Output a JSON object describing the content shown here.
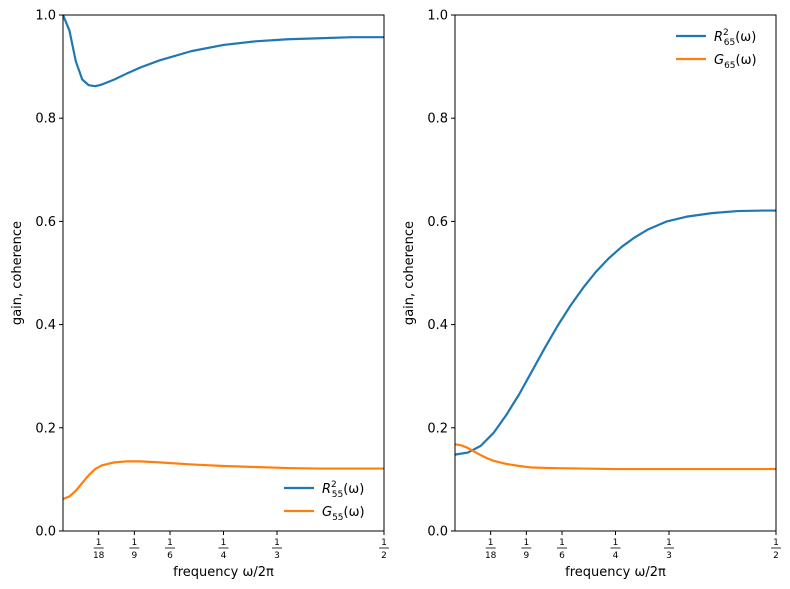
{
  "chart_data": [
    {
      "type": "line",
      "xlabel": "frequency ω/2π",
      "ylabel": "gain, coherence",
      "xlim": [
        0,
        0.5
      ],
      "ylim": [
        0,
        1.0
      ],
      "xticks": [
        {
          "value": 0.05556,
          "num": "1",
          "den": "18"
        },
        {
          "value": 0.11111,
          "num": "1",
          "den": "9"
        },
        {
          "value": 0.16667,
          "num": "1",
          "den": "6"
        },
        {
          "value": 0.25,
          "num": "1",
          "den": "4"
        },
        {
          "value": 0.33333,
          "num": "1",
          "den": "3"
        },
        {
          "value": 0.5,
          "num": "1",
          "den": "2"
        }
      ],
      "yticks": [
        "0.0",
        "0.2",
        "0.4",
        "0.6",
        "0.8",
        "1.0"
      ],
      "legend_position": "lower-right",
      "series": [
        {
          "name": "R",
          "sup": "2",
          "sub": "55",
          "arg": "(ω)",
          "color": "#1f77b4",
          "x": [
            0,
            0.01,
            0.02,
            0.03,
            0.04,
            0.05,
            0.06,
            0.08,
            0.1,
            0.12,
            0.15,
            0.2,
            0.25,
            0.3,
            0.35,
            0.4,
            0.45,
            0.5
          ],
          "y": [
            1.0,
            0.97,
            0.91,
            0.875,
            0.864,
            0.862,
            0.865,
            0.875,
            0.887,
            0.898,
            0.912,
            0.93,
            0.942,
            0.949,
            0.953,
            0.955,
            0.957,
            0.957
          ]
        },
        {
          "name": "G",
          "sub": "55",
          "arg": "(ω)",
          "color": "#ff7f0e",
          "x": [
            0,
            0.01,
            0.02,
            0.03,
            0.04,
            0.05,
            0.06,
            0.08,
            0.1,
            0.12,
            0.15,
            0.2,
            0.25,
            0.3,
            0.35,
            0.4,
            0.45,
            0.5
          ],
          "y": [
            0.062,
            0.067,
            0.078,
            0.093,
            0.108,
            0.12,
            0.127,
            0.133,
            0.135,
            0.135,
            0.133,
            0.129,
            0.126,
            0.124,
            0.122,
            0.121,
            0.121,
            0.121
          ]
        }
      ]
    },
    {
      "type": "line",
      "xlabel": "frequency ω/2π",
      "ylabel": "gain, coherence",
      "xlim": [
        0,
        0.5
      ],
      "ylim": [
        0,
        1.0
      ],
      "xticks": [
        {
          "value": 0.05556,
          "num": "1",
          "den": "18"
        },
        {
          "value": 0.11111,
          "num": "1",
          "den": "9"
        },
        {
          "value": 0.16667,
          "num": "1",
          "den": "6"
        },
        {
          "value": 0.25,
          "num": "1",
          "den": "4"
        },
        {
          "value": 0.33333,
          "num": "1",
          "den": "3"
        },
        {
          "value": 0.5,
          "num": "1",
          "den": "2"
        }
      ],
      "yticks": [
        "0.0",
        "0.2",
        "0.4",
        "0.6",
        "0.8",
        "1.0"
      ],
      "legend_position": "upper-right",
      "series": [
        {
          "name": "R",
          "sup": "2",
          "sub": "65",
          "arg": "(ω)",
          "color": "#1f77b4",
          "x": [
            0,
            0.02,
            0.04,
            0.06,
            0.08,
            0.1,
            0.12,
            0.14,
            0.16,
            0.18,
            0.2,
            0.22,
            0.24,
            0.26,
            0.28,
            0.3,
            0.33,
            0.36,
            0.4,
            0.44,
            0.48,
            0.5
          ],
          "y": [
            0.148,
            0.152,
            0.165,
            0.19,
            0.225,
            0.265,
            0.31,
            0.355,
            0.398,
            0.437,
            0.472,
            0.503,
            0.529,
            0.551,
            0.569,
            0.584,
            0.6,
            0.609,
            0.616,
            0.62,
            0.621,
            0.621
          ]
        },
        {
          "name": "G",
          "sub": "65",
          "arg": "(ω)",
          "color": "#ff7f0e",
          "x": [
            0,
            0.01,
            0.02,
            0.03,
            0.04,
            0.05,
            0.06,
            0.08,
            0.1,
            0.12,
            0.15,
            0.2,
            0.25,
            0.3,
            0.35,
            0.4,
            0.45,
            0.5
          ],
          "y": [
            0.168,
            0.166,
            0.161,
            0.154,
            0.147,
            0.141,
            0.136,
            0.13,
            0.126,
            0.123,
            0.122,
            0.121,
            0.12,
            0.12,
            0.12,
            0.12,
            0.12,
            0.12
          ]
        }
      ]
    }
  ]
}
